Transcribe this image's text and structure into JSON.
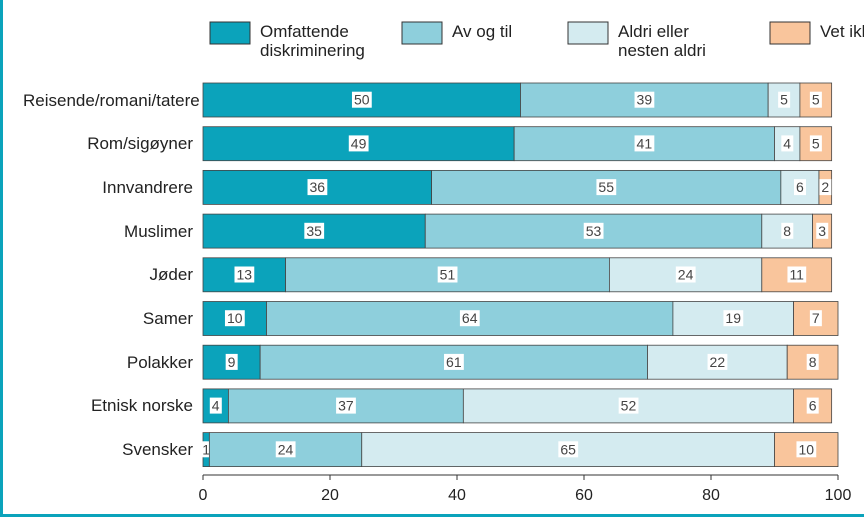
{
  "chart_data": {
    "type": "stacked-bar-horizontal",
    "categories": [
      "Reisende/romani/tatere",
      "Rom/sigøyner",
      "Innvandrere",
      "Muslimer",
      "Jøder",
      "Samer",
      "Polakker",
      "Etnisk norske",
      "Svensker"
    ],
    "series": [
      {
        "name": "Omfattende diskriminering",
        "color": "#0ba3bb",
        "values": [
          50,
          49,
          36,
          35,
          13,
          10,
          9,
          4,
          1
        ]
      },
      {
        "name": "Av og til",
        "color": "#8ecfdc",
        "values": [
          39,
          41,
          55,
          53,
          51,
          64,
          61,
          37,
          24
        ]
      },
      {
        "name": "Aldri eller nesten aldri",
        "color": "#d4ebf0",
        "values": [
          5,
          4,
          6,
          8,
          24,
          19,
          22,
          52,
          65
        ]
      },
      {
        "name": "Vet ikke",
        "color": "#f9c59c",
        "values": [
          5,
          5,
          2,
          3,
          11,
          7,
          8,
          6,
          10
        ]
      }
    ],
    "xlim": [
      0,
      100
    ],
    "xticks": [
      0,
      20,
      40,
      60,
      80,
      100
    ],
    "legend": "top"
  }
}
